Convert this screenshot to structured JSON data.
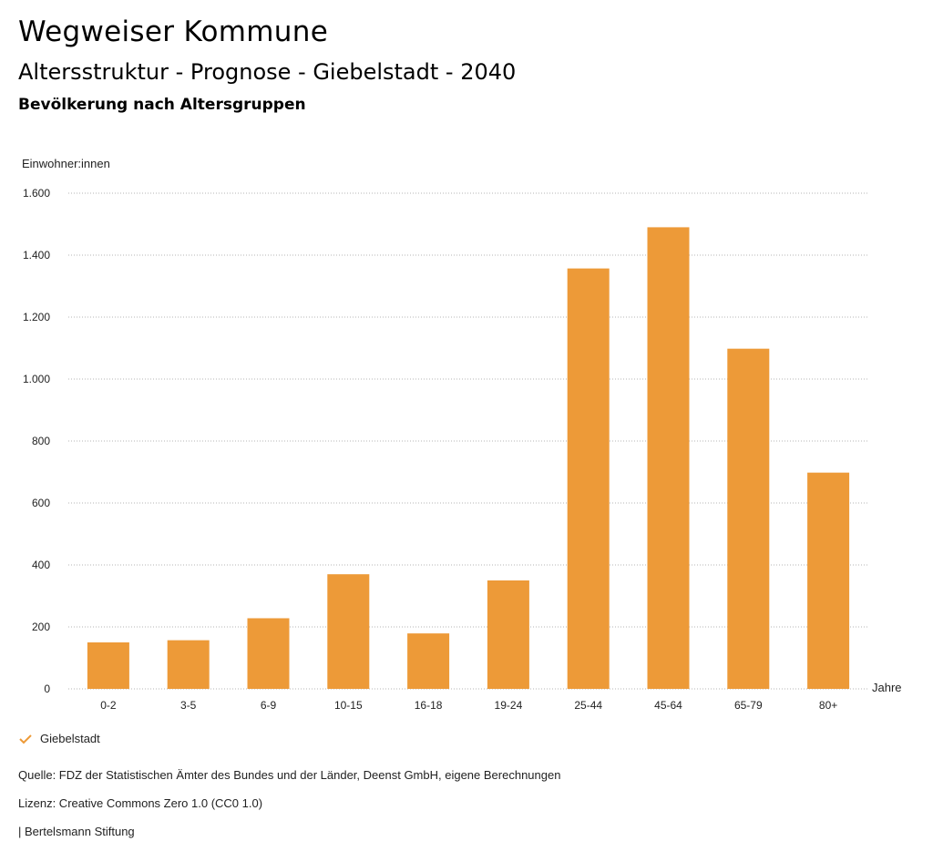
{
  "header": {
    "brand": "Wegweiser Kommune",
    "title": "Altersstruktur - Prognose - Giebelstadt - 2040",
    "subtitle": "Bevölkerung nach Altersgruppen"
  },
  "chart_data": {
    "type": "bar",
    "ylabel": "Einwohner:innen",
    "xlabel": "Jahre",
    "categories": [
      "0-2",
      "3-5",
      "6-9",
      "10-15",
      "16-18",
      "19-24",
      "25-44",
      "45-64",
      "65-79",
      "80+"
    ],
    "series": [
      {
        "name": "Giebelstadt",
        "color": "#ed9a38",
        "values": [
          150,
          157,
          228,
          370,
          179,
          350,
          1357,
          1490,
          1098,
          698
        ]
      }
    ],
    "ylim": [
      0,
      1600
    ],
    "yticks": [
      0,
      200,
      400,
      600,
      800,
      1000,
      1200,
      1400,
      1600
    ],
    "ytick_labels": [
      "0",
      "200",
      "400",
      "600",
      "800",
      "1.000",
      "1.200",
      "1.400",
      "1.600"
    ],
    "grid": true,
    "legend": "bottom-left"
  },
  "legend": {
    "label": "Giebelstadt",
    "icon": "check-icon"
  },
  "footer": {
    "source": "Quelle: FDZ der Statistischen Ämter des Bundes und der Länder, Deenst GmbH, eigene Berechnungen",
    "license": "Lizenz: Creative Commons Zero 1.0 (CC0 1.0)",
    "publisher": "| Bertelsmann Stiftung"
  }
}
